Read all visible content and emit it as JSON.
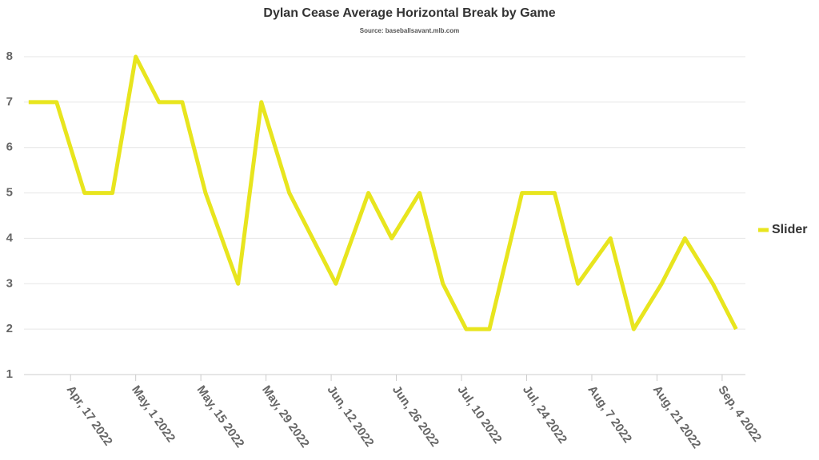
{
  "chart_data": {
    "type": "line",
    "title": "Dylan Cease Average Horizontal Break by Game",
    "subtitle": "Source: baseballsavant.mlb.com",
    "x": [
      "2022-04-08",
      "2022-04-14",
      "2022-04-20",
      "2022-04-26",
      "2022-05-01",
      "2022-05-06",
      "2022-05-11",
      "2022-05-16",
      "2022-05-23",
      "2022-05-28",
      "2022-06-03",
      "2022-06-08",
      "2022-06-13",
      "2022-06-20",
      "2022-06-25",
      "2022-07-01",
      "2022-07-06",
      "2022-07-11",
      "2022-07-16",
      "2022-07-23",
      "2022-07-30",
      "2022-08-04",
      "2022-08-11",
      "2022-08-16",
      "2022-08-22",
      "2022-08-27",
      "2022-09-02",
      "2022-09-07"
    ],
    "series": [
      {
        "name": "Slider",
        "color": "#e8e51e",
        "values": [
          7,
          7,
          5,
          5,
          8,
          7,
          7,
          5,
          3,
          7,
          5,
          4,
          3,
          5,
          4,
          5,
          3,
          2,
          2,
          5,
          5,
          3,
          4,
          2,
          3,
          4,
          3,
          2
        ]
      }
    ],
    "xlim": [
      "2022-04-07",
      "2022-09-09"
    ],
    "xticks": [
      {
        "value": "2022-04-17",
        "label": "Apr, 17 2022"
      },
      {
        "value": "2022-05-01",
        "label": "May, 1 2022"
      },
      {
        "value": "2022-05-15",
        "label": "May, 15 2022"
      },
      {
        "value": "2022-05-29",
        "label": "May, 29 2022"
      },
      {
        "value": "2022-06-12",
        "label": "Jun, 12 2022"
      },
      {
        "value": "2022-06-26",
        "label": "Jun, 26 2022"
      },
      {
        "value": "2022-07-10",
        "label": "Jul, 10 2022"
      },
      {
        "value": "2022-07-24",
        "label": "Jul, 24 2022"
      },
      {
        "value": "2022-08-07",
        "label": "Aug, 7 2022"
      },
      {
        "value": "2022-08-21",
        "label": "Aug, 21 2022"
      },
      {
        "value": "2022-09-04",
        "label": "Sep, 4 2022"
      }
    ],
    "ylim": [
      1,
      8
    ],
    "yticks": [
      1,
      2,
      3,
      4,
      5,
      6,
      7,
      8
    ],
    "grid": true,
    "legend": "right"
  }
}
